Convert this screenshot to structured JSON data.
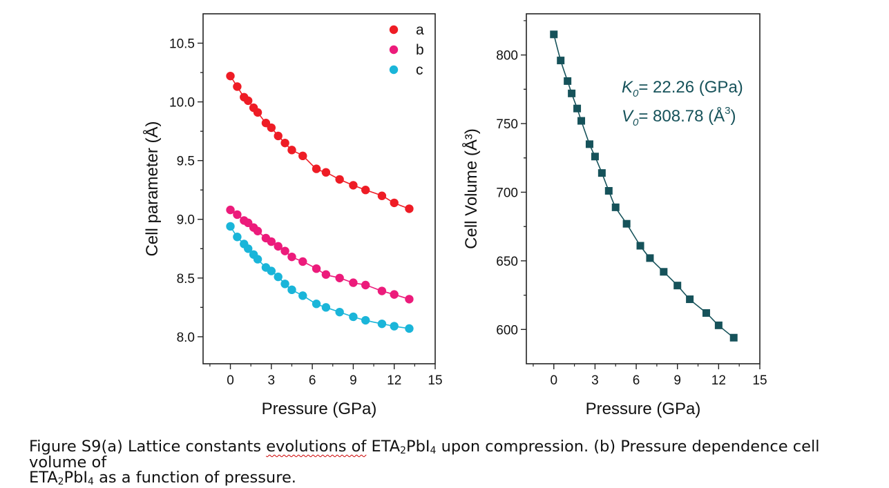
{
  "chart_data": [
    {
      "type": "scatter",
      "xlabel": "Pressure (GPa)",
      "ylabel": "Cell parameter (Å)",
      "xlim": [
        -2,
        15
      ],
      "ylim": [
        7.77,
        10.75
      ],
      "xticks": [
        0,
        3,
        6,
        9,
        12,
        15
      ],
      "yticks": [
        8.0,
        8.5,
        9.0,
        9.5,
        10.0,
        10.5
      ],
      "ytick_labels": [
        "8.0",
        "8.5",
        "9.0",
        "9.5",
        "10.0",
        "10.5"
      ],
      "legend_position": "top-right",
      "fit_lines": true,
      "series": [
        {
          "name": "a",
          "color": "#ee1c25",
          "x": [
            0,
            0.5,
            1.0,
            1.3,
            1.7,
            2.0,
            2.6,
            3.0,
            3.5,
            4.0,
            4.5,
            5.3,
            6.3,
            7.0,
            8.0,
            9.0,
            9.9,
            11.1,
            12.0,
            13.1
          ],
          "y": [
            10.22,
            10.13,
            10.04,
            10.01,
            9.95,
            9.91,
            9.82,
            9.78,
            9.71,
            9.65,
            9.59,
            9.54,
            9.43,
            9.4,
            9.34,
            9.29,
            9.25,
            9.2,
            9.14,
            9.09
          ]
        },
        {
          "name": "b",
          "color": "#ec1b7b",
          "x": [
            0,
            0.5,
            1.0,
            1.3,
            1.7,
            2.0,
            2.6,
            3.0,
            3.5,
            4.0,
            4.5,
            5.3,
            6.3,
            7.0,
            8.0,
            9.0,
            9.9,
            11.1,
            12.0,
            13.1
          ],
          "y": [
            9.08,
            9.04,
            8.99,
            8.97,
            8.93,
            8.9,
            8.84,
            8.81,
            8.77,
            8.73,
            8.68,
            8.64,
            8.58,
            8.53,
            8.5,
            8.46,
            8.44,
            8.39,
            8.36,
            8.32
          ]
        },
        {
          "name": "c",
          "color": "#1ab5d9",
          "x": [
            0,
            0.5,
            1.0,
            1.3,
            1.7,
            2.0,
            2.6,
            3.0,
            3.5,
            4.0,
            4.5,
            5.3,
            6.3,
            7.0,
            8.0,
            9.0,
            9.9,
            11.1,
            12.0,
            13.1
          ],
          "y": [
            8.94,
            8.85,
            8.79,
            8.75,
            8.7,
            8.66,
            8.59,
            8.56,
            8.51,
            8.45,
            8.4,
            8.35,
            8.28,
            8.25,
            8.21,
            8.17,
            8.14,
            8.11,
            8.09,
            8.07
          ]
        }
      ]
    },
    {
      "type": "scatter",
      "xlabel": "Pressure (GPa)",
      "ylabel": "Cell Volume (Å³)",
      "xlim": [
        -2,
        15
      ],
      "ylim": [
        575,
        830
      ],
      "xticks": [
        0,
        3,
        6,
        9,
        12,
        15
      ],
      "yticks": [
        600,
        650,
        700,
        750,
        800
      ],
      "ytick_labels": [
        "600",
        "650",
        "700",
        "750",
        "800"
      ],
      "fit_lines": true,
      "annotations": {
        "k_label": "K",
        "k_sub": "0",
        "k_value": "= 22.26 (GPa)",
        "v_label": "V",
        "v_sub": "0",
        "v_value": "= 808.78 (Å",
        "v_sup": "3",
        "v_close": ")"
      },
      "series": [
        {
          "name": "",
          "color": "#16525a",
          "x": [
            0,
            0.5,
            1.0,
            1.3,
            1.7,
            2.0,
            2.6,
            3.0,
            3.5,
            4.0,
            4.5,
            5.3,
            6.3,
            7.0,
            8.0,
            9.0,
            9.9,
            11.1,
            12.0,
            13.1
          ],
          "y": [
            815,
            796,
            781,
            772,
            761,
            752,
            735,
            726,
            714,
            701,
            689,
            677,
            661,
            652,
            642,
            632,
            622,
            612,
            603,
            594
          ]
        }
      ]
    }
  ],
  "caption": {
    "line1_prefix": "Figure S9(a) Lattice constants ",
    "line1_wavy": "evolutions of",
    "line1_formula_a": "ETA",
    "line1_formula_sub": "2",
    "line1_formula_b": "PbI",
    "line1_formula_sub2": "4",
    "line1_rest": " upon compression. (b) Pressure dependence cell volume of",
    "line2_formula_a": "ETA",
    "line2_formula_sub": "2",
    "line2_formula_b": "PbI",
    "line2_formula_sub2": "4",
    "line2_rest": " as a function of pressure."
  }
}
